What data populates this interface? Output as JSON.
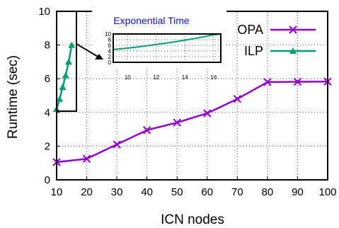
{
  "chart_data": [
    {
      "type": "line",
      "xlabel": "ICN nodes",
      "ylabel": "Runtime (sec)",
      "xlim": [
        10,
        100
      ],
      "ylim": [
        0,
        10
      ],
      "x_ticks": [
        10,
        20,
        30,
        40,
        50,
        60,
        70,
        80,
        90,
        100
      ],
      "y_ticks": [
        0,
        2,
        4,
        6,
        8,
        10
      ],
      "grid": true,
      "legend_position": "top-right",
      "colors": {
        "OPA": "#9400d3",
        "ILP": "#009e73"
      },
      "series": [
        {
          "name": "OPA",
          "marker": "x",
          "x": [
            10,
            20,
            30,
            40,
            50,
            60,
            70,
            80,
            90,
            100
          ],
          "values": [
            1.05,
            1.25,
            2.1,
            2.95,
            3.4,
            3.95,
            4.8,
            5.8,
            5.82,
            5.83
          ]
        },
        {
          "name": "ILP",
          "marker": "triangle",
          "x": [
            10,
            11,
            12,
            13,
            14,
            15
          ],
          "values": [
            4.2,
            4.8,
            5.5,
            6.2,
            7.0,
            8.0
          ]
        }
      ]
    },
    {
      "type": "line",
      "title": "Exponential Time",
      "xlim": [
        9,
        16.5
      ],
      "ylim": [
        0,
        10
      ],
      "x_ticks": [
        10,
        12,
        14,
        16
      ],
      "y_ticks": [
        0,
        2,
        4,
        6,
        8,
        10
      ],
      "grid": true,
      "series": [
        {
          "name": "ILP",
          "x": [
            9,
            10,
            11,
            12,
            13,
            14,
            15,
            16,
            16.5
          ],
          "values": [
            4.5,
            5.0,
            5.6,
            6.3,
            7.0,
            7.8,
            8.7,
            9.7,
            10.3
          ]
        }
      ]
    }
  ]
}
